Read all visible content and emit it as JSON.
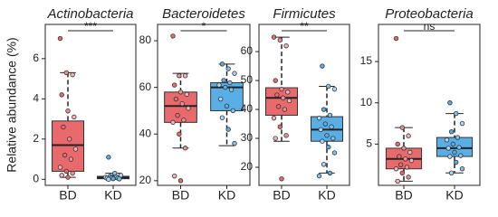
{
  "chart_data": [
    {
      "type": "box",
      "title": "Actinobacteria",
      "ylabel": "Relative abundance (%)",
      "annotation": "***",
      "categories": [
        "BD",
        "KD"
      ],
      "ylim": [
        -0.3,
        7.7
      ],
      "yticks": [
        0,
        2,
        4,
        6
      ],
      "boxes": [
        {
          "color": "#e96a6c",
          "whislo": 0.1,
          "q1": 0.4,
          "med": 1.7,
          "q3": 2.9,
          "whishi": 5.3,
          "points": [
            7.0,
            5.3,
            5.2,
            4.2,
            3.4,
            3.1,
            2.6,
            2.0,
            1.5,
            1.2,
            1.0,
            0.6,
            0.4,
            0.3,
            0.2,
            0.1
          ]
        },
        {
          "color": "#5aaee6",
          "whislo": 0.0,
          "q1": 0.03,
          "med": 0.08,
          "q3": 0.15,
          "whishi": 0.3,
          "points": [
            1.1,
            0.3,
            0.2,
            0.15,
            0.12,
            0.1,
            0.08,
            0.06,
            0.05,
            0.03,
            0.02,
            0.0
          ]
        }
      ]
    },
    {
      "type": "box",
      "title": "Bacteroidetes",
      "annotation": "*",
      "categories": [
        "BD",
        "KD"
      ],
      "ylim": [
        18,
        87
      ],
      "yticks": [
        20,
        40,
        60,
        80
      ],
      "boxes": [
        {
          "color": "#e96a6c",
          "whislo": 34,
          "q1": 45,
          "med": 52,
          "q3": 58,
          "whishi": 66,
          "points": [
            82,
            65,
            65,
            61,
            58,
            57,
            55,
            53,
            51,
            48,
            46,
            45,
            40,
            34,
            22,
            20
          ]
        },
        {
          "color": "#5aaee6",
          "whislo": 35,
          "q1": 50,
          "med": 60,
          "q3": 62,
          "whishi": 70,
          "points": [
            70,
            68,
            66,
            63,
            62,
            61,
            60,
            59,
            55,
            52,
            50,
            47,
            42,
            36
          ]
        }
      ]
    },
    {
      "type": "box",
      "title": "Firmicutes",
      "annotation": "**",
      "categories": [
        "BD",
        "KD"
      ],
      "ylim": [
        13.75,
        69.4
      ],
      "yticks": [
        20,
        30,
        40,
        50,
        60
      ],
      "boxes": [
        {
          "color": "#e96a6c",
          "whislo": 29,
          "q1": 38,
          "med": 44,
          "q3": 47.5,
          "whishi": 65,
          "points": [
            65,
            64,
            62,
            50,
            47,
            46,
            45,
            44,
            43,
            41,
            40,
            37,
            34,
            31,
            30,
            16
          ]
        },
        {
          "color": "#5aaee6",
          "whislo": 18,
          "q1": 29,
          "med": 33,
          "q3": 37.5,
          "whishi": 48,
          "points": [
            55,
            48,
            47,
            40,
            38,
            37,
            35,
            34,
            33,
            31,
            30,
            29,
            27,
            25,
            21,
            18,
            17
          ]
        }
      ]
    },
    {
      "type": "box",
      "title": "Proteobacteria",
      "annotation": "ns",
      "categories": [
        "BD",
        "KD"
      ],
      "ylim": [
        0,
        19.5
      ],
      "yticks": [
        5,
        10,
        15
      ],
      "boxes": [
        {
          "color": "#e96a6c",
          "whislo": 0.5,
          "q1": 2.0,
          "med": 3.2,
          "q3": 4.5,
          "whishi": 7.0,
          "points": [
            17.8,
            7.0,
            6.0,
            5.0,
            4.5,
            4.0,
            3.5,
            3.2,
            3.0,
            2.5,
            2.2,
            2.0,
            1.5,
            1.0,
            0.5
          ]
        },
        {
          "color": "#5aaee6",
          "whislo": 1.5,
          "q1": 3.5,
          "med": 4.5,
          "q3": 5.8,
          "whishi": 8.7,
          "points": [
            10.0,
            8.7,
            7.5,
            6.5,
            5.8,
            5.5,
            5.0,
            4.6,
            4.5,
            4.0,
            3.6,
            3.5,
            2.8,
            2.0,
            1.5
          ]
        }
      ]
    }
  ]
}
